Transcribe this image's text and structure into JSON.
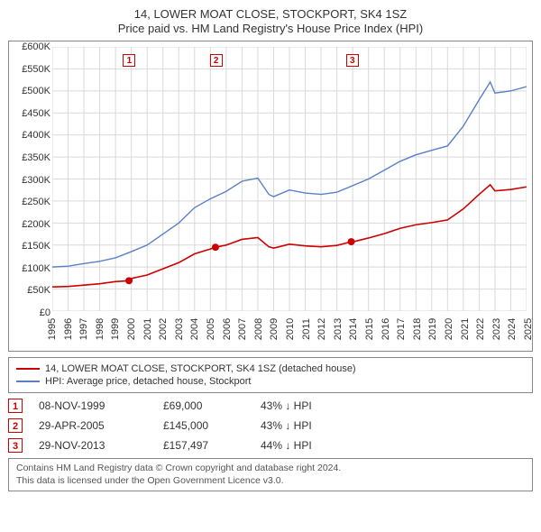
{
  "title": "14, LOWER MOAT CLOSE, STOCKPORT, SK4 1SZ",
  "subtitle": "Price paid vs. HM Land Registry's House Price Index (HPI)",
  "chart": {
    "type": "line",
    "background_color": "#ffffff",
    "grid_color": "#d9d9d9",
    "border_color": "#888888",
    "x": {
      "min": 1995,
      "max": 2025,
      "ticks": [
        1995,
        1996,
        1997,
        1998,
        1999,
        2000,
        2001,
        2002,
        2003,
        2004,
        2005,
        2006,
        2007,
        2008,
        2009,
        2010,
        2011,
        2012,
        2013,
        2014,
        2015,
        2016,
        2017,
        2018,
        2019,
        2020,
        2021,
        2022,
        2023,
        2024,
        2025
      ],
      "label_fontsize": 11,
      "rotation": -90
    },
    "y": {
      "min": 0,
      "max": 600000,
      "ticks": [
        0,
        50000,
        100000,
        150000,
        200000,
        250000,
        300000,
        350000,
        400000,
        450000,
        500000,
        550000,
        600000
      ],
      "tick_labels": [
        "£0",
        "£50K",
        "£100K",
        "£150K",
        "£200K",
        "£250K",
        "£300K",
        "£350K",
        "£400K",
        "£450K",
        "£500K",
        "£550K",
        "£600K"
      ],
      "label_fontsize": 11
    },
    "series": [
      {
        "id": "hpi",
        "label": "HPI: Average price, detached house, Stockport",
        "color": "#5b7fc7",
        "line_width": 1.4,
        "points": [
          [
            1995,
            100000
          ],
          [
            1996,
            102000
          ],
          [
            1997,
            108000
          ],
          [
            1998,
            113000
          ],
          [
            1999,
            121000
          ],
          [
            2000,
            135000
          ],
          [
            2001,
            150000
          ],
          [
            2002,
            175000
          ],
          [
            2003,
            200000
          ],
          [
            2004,
            235000
          ],
          [
            2005,
            255000
          ],
          [
            2006,
            272000
          ],
          [
            2007,
            295000
          ],
          [
            2008,
            302000
          ],
          [
            2008.7,
            265000
          ],
          [
            2009,
            260000
          ],
          [
            2010,
            275000
          ],
          [
            2011,
            268000
          ],
          [
            2012,
            265000
          ],
          [
            2013,
            270000
          ],
          [
            2014,
            285000
          ],
          [
            2015,
            300000
          ],
          [
            2016,
            320000
          ],
          [
            2017,
            340000
          ],
          [
            2018,
            355000
          ],
          [
            2019,
            365000
          ],
          [
            2020,
            375000
          ],
          [
            2021,
            420000
          ],
          [
            2022,
            480000
          ],
          [
            2022.7,
            520000
          ],
          [
            2023,
            495000
          ],
          [
            2024,
            500000
          ],
          [
            2025,
            510000
          ]
        ]
      },
      {
        "id": "property",
        "label": "14, LOWER MOAT CLOSE, STOCKPORT, SK4 1SZ (detached house)",
        "color": "#cc0000",
        "line_width": 1.6,
        "points": [
          [
            1995,
            55000
          ],
          [
            1996,
            56000
          ],
          [
            1997,
            59000
          ],
          [
            1998,
            62000
          ],
          [
            1999,
            67000
          ],
          [
            1999.85,
            69000
          ],
          [
            2000,
            74000
          ],
          [
            2001,
            82000
          ],
          [
            2002,
            96000
          ],
          [
            2003,
            110000
          ],
          [
            2004,
            130000
          ],
          [
            2005,
            141000
          ],
          [
            2005.32,
            145000
          ],
          [
            2006,
            150000
          ],
          [
            2007,
            163000
          ],
          [
            2008,
            167000
          ],
          [
            2008.7,
            146000
          ],
          [
            2009,
            143000
          ],
          [
            2010,
            152000
          ],
          [
            2011,
            148000
          ],
          [
            2012,
            146000
          ],
          [
            2013,
            149000
          ],
          [
            2013.91,
            157497
          ],
          [
            2014,
            157000
          ],
          [
            2015,
            166000
          ],
          [
            2016,
            176000
          ],
          [
            2017,
            188000
          ],
          [
            2018,
            196000
          ],
          [
            2019,
            201000
          ],
          [
            2020,
            207000
          ],
          [
            2021,
            232000
          ],
          [
            2022,
            265000
          ],
          [
            2022.7,
            287000
          ],
          [
            2023,
            273000
          ],
          [
            2024,
            276000
          ],
          [
            2025,
            282000
          ]
        ]
      }
    ],
    "sale_markers": [
      {
        "n": "1",
        "x": 1999.85,
        "y": 69000
      },
      {
        "n": "2",
        "x": 2005.32,
        "y": 145000
      },
      {
        "n": "3",
        "x": 2013.91,
        "y": 157497
      }
    ],
    "marker_dot_color": "#cc0000",
    "marker_dot_radius": 4
  },
  "legend": {
    "items": [
      {
        "color": "#cc0000",
        "label": "14, LOWER MOAT CLOSE, STOCKPORT, SK4 1SZ (detached house)"
      },
      {
        "color": "#5b7fc7",
        "label": "HPI: Average price, detached house, Stockport"
      }
    ]
  },
  "sales": [
    {
      "n": "1",
      "date": "08-NOV-1999",
      "price": "£69,000",
      "diff": "43% ↓ HPI"
    },
    {
      "n": "2",
      "date": "29-APR-2005",
      "price": "£145,000",
      "diff": "43% ↓ HPI"
    },
    {
      "n": "3",
      "date": "29-NOV-2013",
      "price": "£157,497",
      "diff": "44% ↓ HPI"
    }
  ],
  "footer_line1": "Contains HM Land Registry data © Crown copyright and database right 2024.",
  "footer_line2": "This data is licensed under the Open Government Licence v3.0."
}
